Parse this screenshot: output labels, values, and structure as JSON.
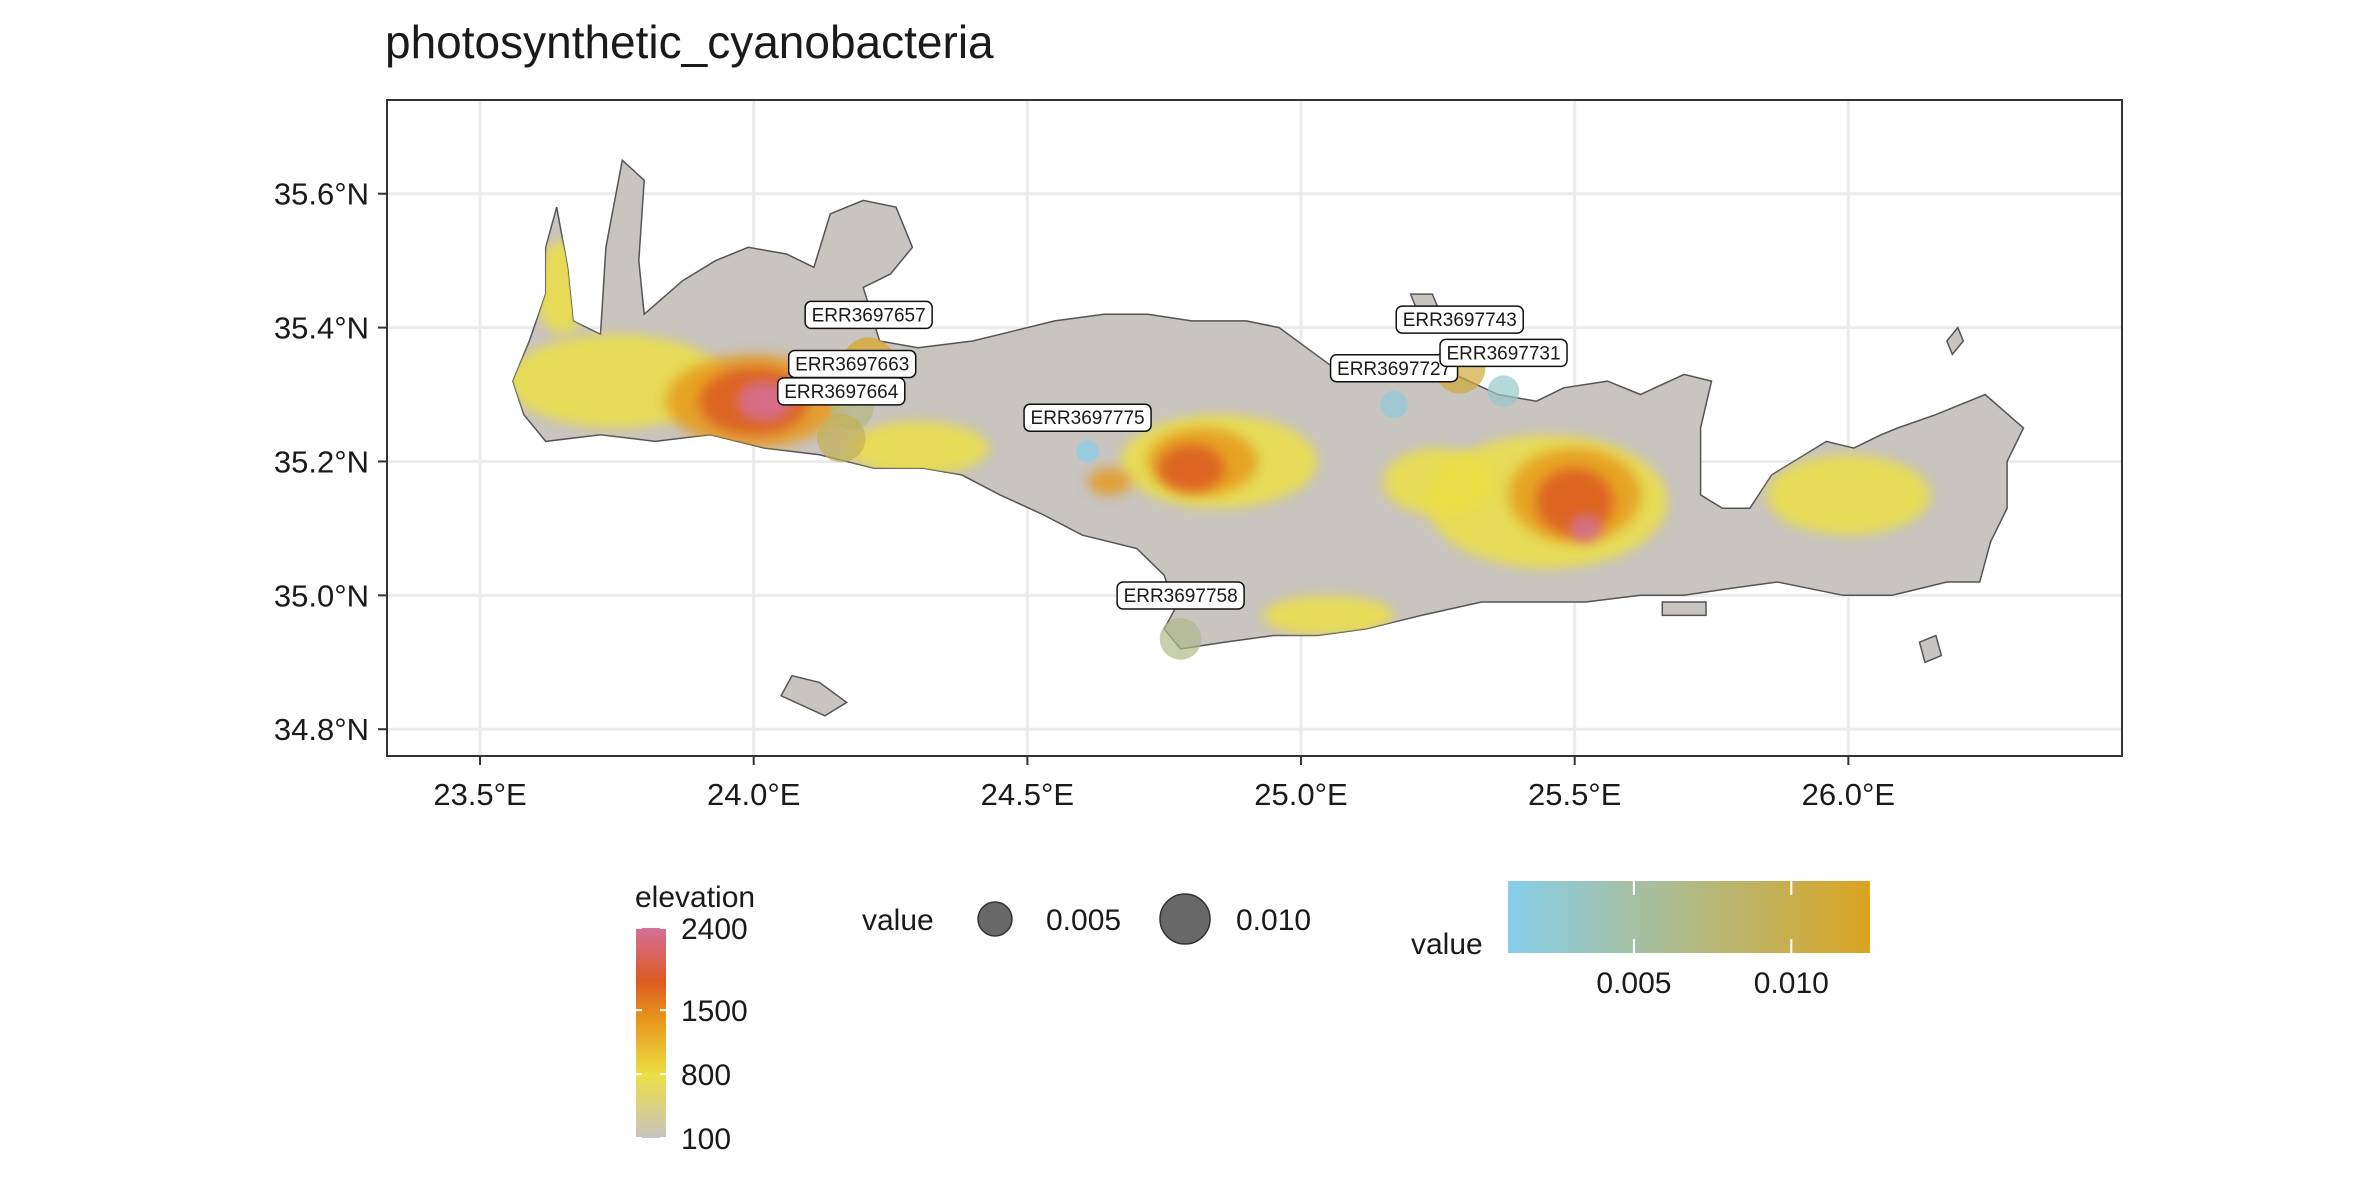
{
  "title": "photosynthetic_cyanobacteria",
  "map": {
    "x_axis": {
      "range": [
        23.33,
        26.5
      ],
      "ticks": [
        23.5,
        24.0,
        24.5,
        25.0,
        25.5,
        26.0
      ],
      "tick_labels": [
        "23.5°E",
        "24.0°E",
        "24.5°E",
        "25.0°E",
        "25.5°E",
        "26.0°E"
      ]
    },
    "y_axis": {
      "range": [
        34.76,
        35.74
      ],
      "ticks": [
        34.8,
        35.0,
        35.2,
        35.4,
        35.6
      ],
      "tick_labels": [
        "34.8°N",
        "35.0°N",
        "35.2°N",
        "35.4°N",
        "35.6°N"
      ]
    },
    "grid": true,
    "panel_background": "#ffffff",
    "grid_color": "#ebebeb",
    "land_base_color": "#c8c4c0"
  },
  "chart_data": {
    "type": "scatter",
    "title": "photosynthetic_cyanobacteria",
    "xlabel": "",
    "ylabel": "",
    "xlim": [
      23.33,
      26.5
    ],
    "ylim": [
      34.76,
      35.74
    ],
    "points": [
      {
        "label": "ERR3697657",
        "lon": 24.21,
        "lat": 35.345,
        "value": 0.0125
      },
      {
        "label": "ERR3697663",
        "lon": 24.18,
        "lat": 35.28,
        "value": 0.007
      },
      {
        "label": "ERR3697664",
        "lon": 24.16,
        "lat": 35.235,
        "value": 0.0095
      },
      {
        "label": "ERR3697775",
        "lon": 24.61,
        "lat": 35.215,
        "value": 0.001
      },
      {
        "label": "ERR3697758",
        "lon": 24.78,
        "lat": 34.935,
        "value": 0.0065
      },
      {
        "label": "ERR3697727",
        "lon": 25.17,
        "lat": 35.285,
        "value": 0.002
      },
      {
        "label": "ERR3697743",
        "lon": 25.29,
        "lat": 35.34,
        "value": 0.011
      },
      {
        "label": "ERR3697731",
        "lon": 25.37,
        "lat": 35.305,
        "value": 0.003
      }
    ],
    "elevation_legend": {
      "title": "elevation",
      "breaks": [
        2400,
        1500,
        800,
        100
      ]
    },
    "size_legend": {
      "title": "value",
      "breaks": [
        0.005,
        0.01
      ],
      "labels": [
        "0.005",
        "0.010"
      ]
    },
    "color_legend": {
      "title": "value",
      "breaks": [
        0.005,
        0.01
      ],
      "labels": [
        "0.005",
        "0.010"
      ],
      "colors": [
        "#87ceeb",
        "#daa520"
      ],
      "limits": [
        0.001,
        0.0125
      ]
    },
    "elevation_colors": [
      "#c8c4c0",
      "#ecdf45",
      "#e79a1c",
      "#dc5a22",
      "#d4709a"
    ]
  }
}
